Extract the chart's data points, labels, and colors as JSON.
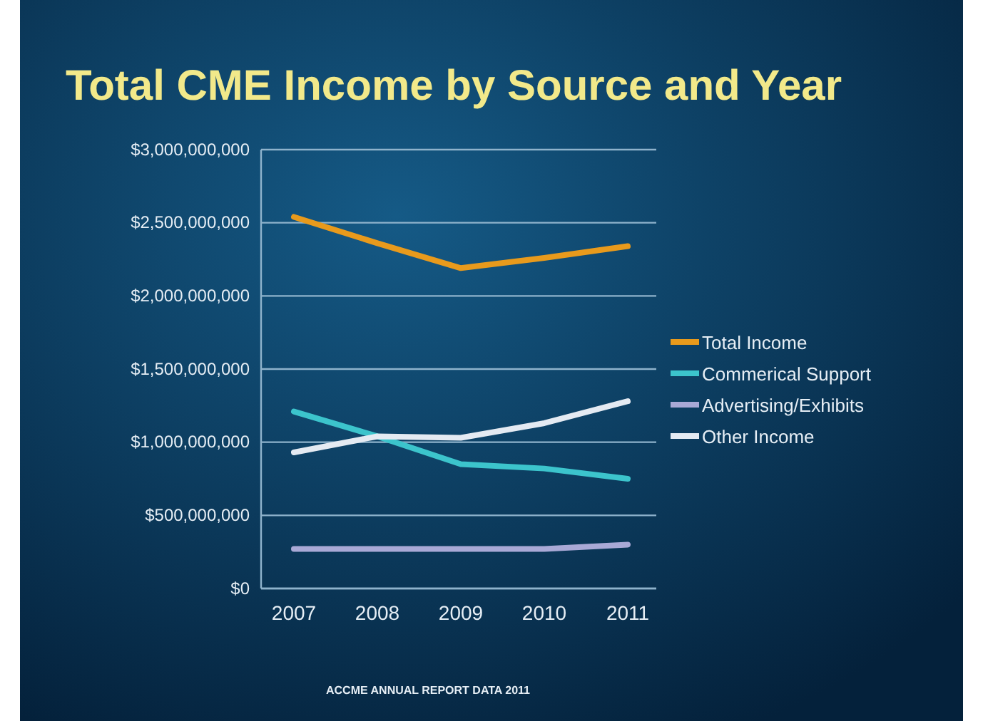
{
  "chart_data": {
    "type": "line",
    "title": "Total CME Income by Source and Year",
    "categories": [
      "2007",
      "2008",
      "2009",
      "2010",
      "2011"
    ],
    "series": [
      {
        "name": "Total Income",
        "color": "#e89a1c",
        "values": [
          2540000000,
          2360000000,
          2190000000,
          2260000000,
          2340000000
        ]
      },
      {
        "name": "Commerical Support",
        "color": "#3cc4cc",
        "values": [
          1210000000,
          1040000000,
          850000000,
          820000000,
          750000000
        ]
      },
      {
        "name": "Advertising/Exhibits",
        "color": "#a9a9d6",
        "values": [
          270000000,
          270000000,
          270000000,
          270000000,
          300000000
        ]
      },
      {
        "name": "Other Income",
        "color": "#e4eaf2",
        "values": [
          930000000,
          1040000000,
          1030000000,
          1130000000,
          1280000000
        ]
      }
    ],
    "ylim": [
      0,
      3000000000
    ],
    "yticks": [
      {
        "value": 0,
        "label": "$0"
      },
      {
        "value": 500000000,
        "label": "$500,000,000"
      },
      {
        "value": 1000000000,
        "label": "$1,000,000,000"
      },
      {
        "value": 1500000000,
        "label": "$1,500,000,000"
      },
      {
        "value": 2000000000,
        "label": "$2,000,000,000"
      },
      {
        "value": 2500000000,
        "label": "$2,500,000,000"
      },
      {
        "value": 3000000000,
        "label": "$3,000,000,000"
      }
    ],
    "grid": "y",
    "legend": "right",
    "marker": "none",
    "line_style": "solid",
    "annotations": [
      "ACCME ANNUAL REPORT DATA 2011"
    ]
  }
}
